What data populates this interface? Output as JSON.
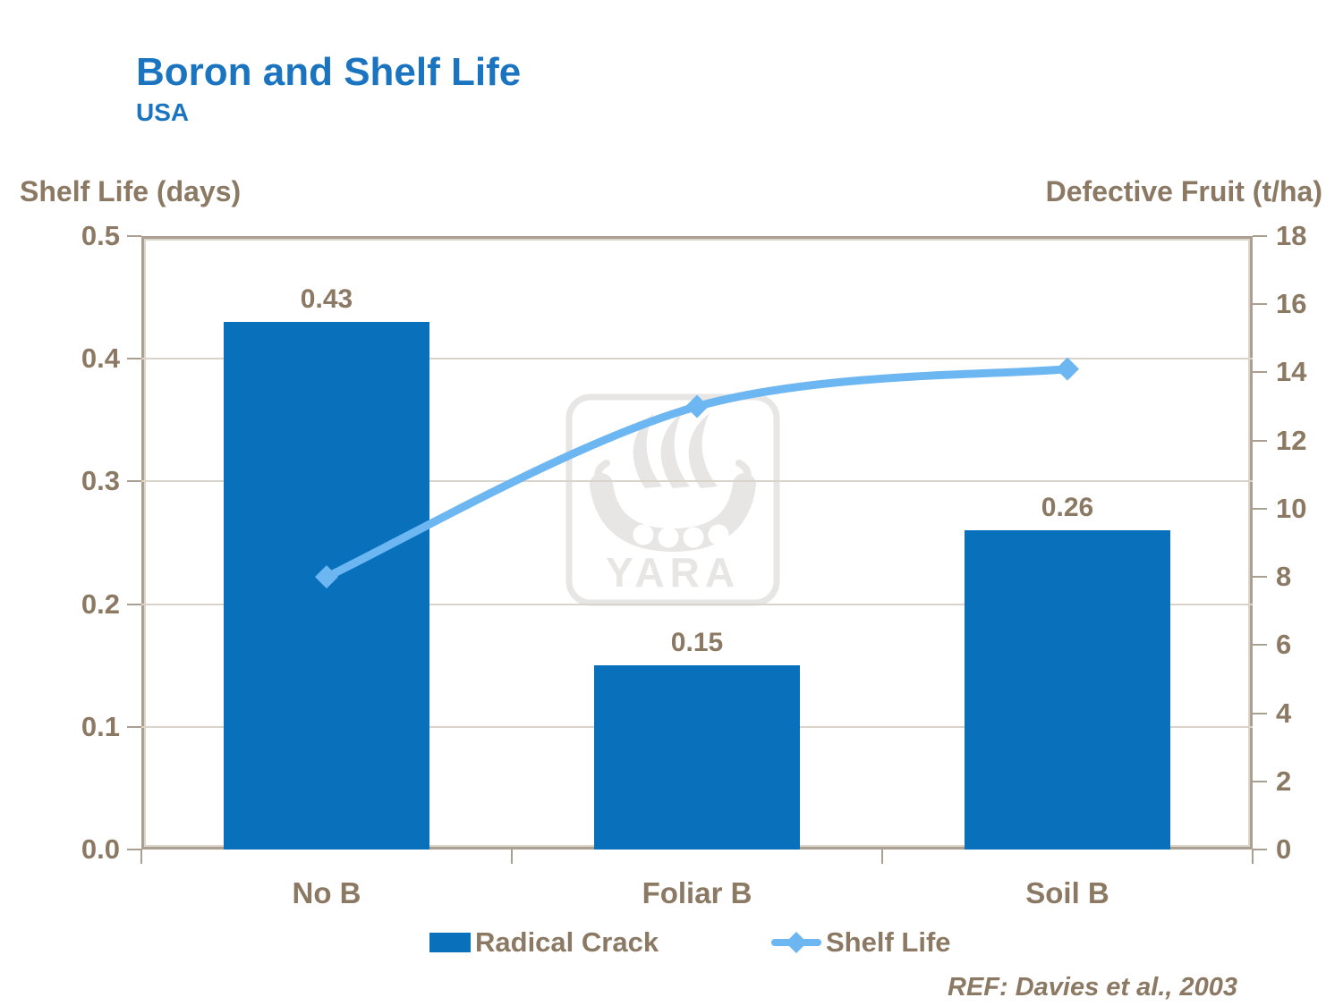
{
  "header": {
    "title": "Boron and Shelf Life",
    "subtitle": "USA"
  },
  "footer": {
    "ref": "REF: Davies et al., 2003"
  },
  "watermark": {
    "label": "YARA"
  },
  "colors": {
    "title_blue": "#1B74C0",
    "bar_blue": "#0971BC",
    "line_blue": "#6CB6F2",
    "text_brown": "#8B7963",
    "gridline": "#D9D3C9",
    "frame": "#AB9F91",
    "watermark_gray": "#E7E6E4"
  },
  "chart_data": {
    "type": "combo",
    "categories": [
      "No B",
      "Foliar B",
      "Soil B"
    ],
    "series": [
      {
        "name": "Radical Crack",
        "type": "bar",
        "axis": "left",
        "values": [
          0.43,
          0.15,
          0.26
        ],
        "value_labels": [
          "0.43",
          "0.15",
          "0.26"
        ],
        "color": "#0971BC"
      },
      {
        "name": "Shelf Life",
        "type": "line",
        "axis": "right",
        "values": [
          8,
          13,
          14.1
        ],
        "marker": "diamond",
        "color": "#6CB6F2"
      }
    ],
    "left_axis": {
      "title": "Shelf Life (days)",
      "min": 0,
      "max": 0.5,
      "tick_step": 0.1,
      "decimals": 1
    },
    "right_axis": {
      "title": "Defective Fruit (t/ha)",
      "min": 0,
      "max": 18,
      "tick_step": 2,
      "decimals": 0
    },
    "grid": "horizontal-major",
    "legend_position": "bottom",
    "source": "REF: Davies et al., 2003"
  }
}
